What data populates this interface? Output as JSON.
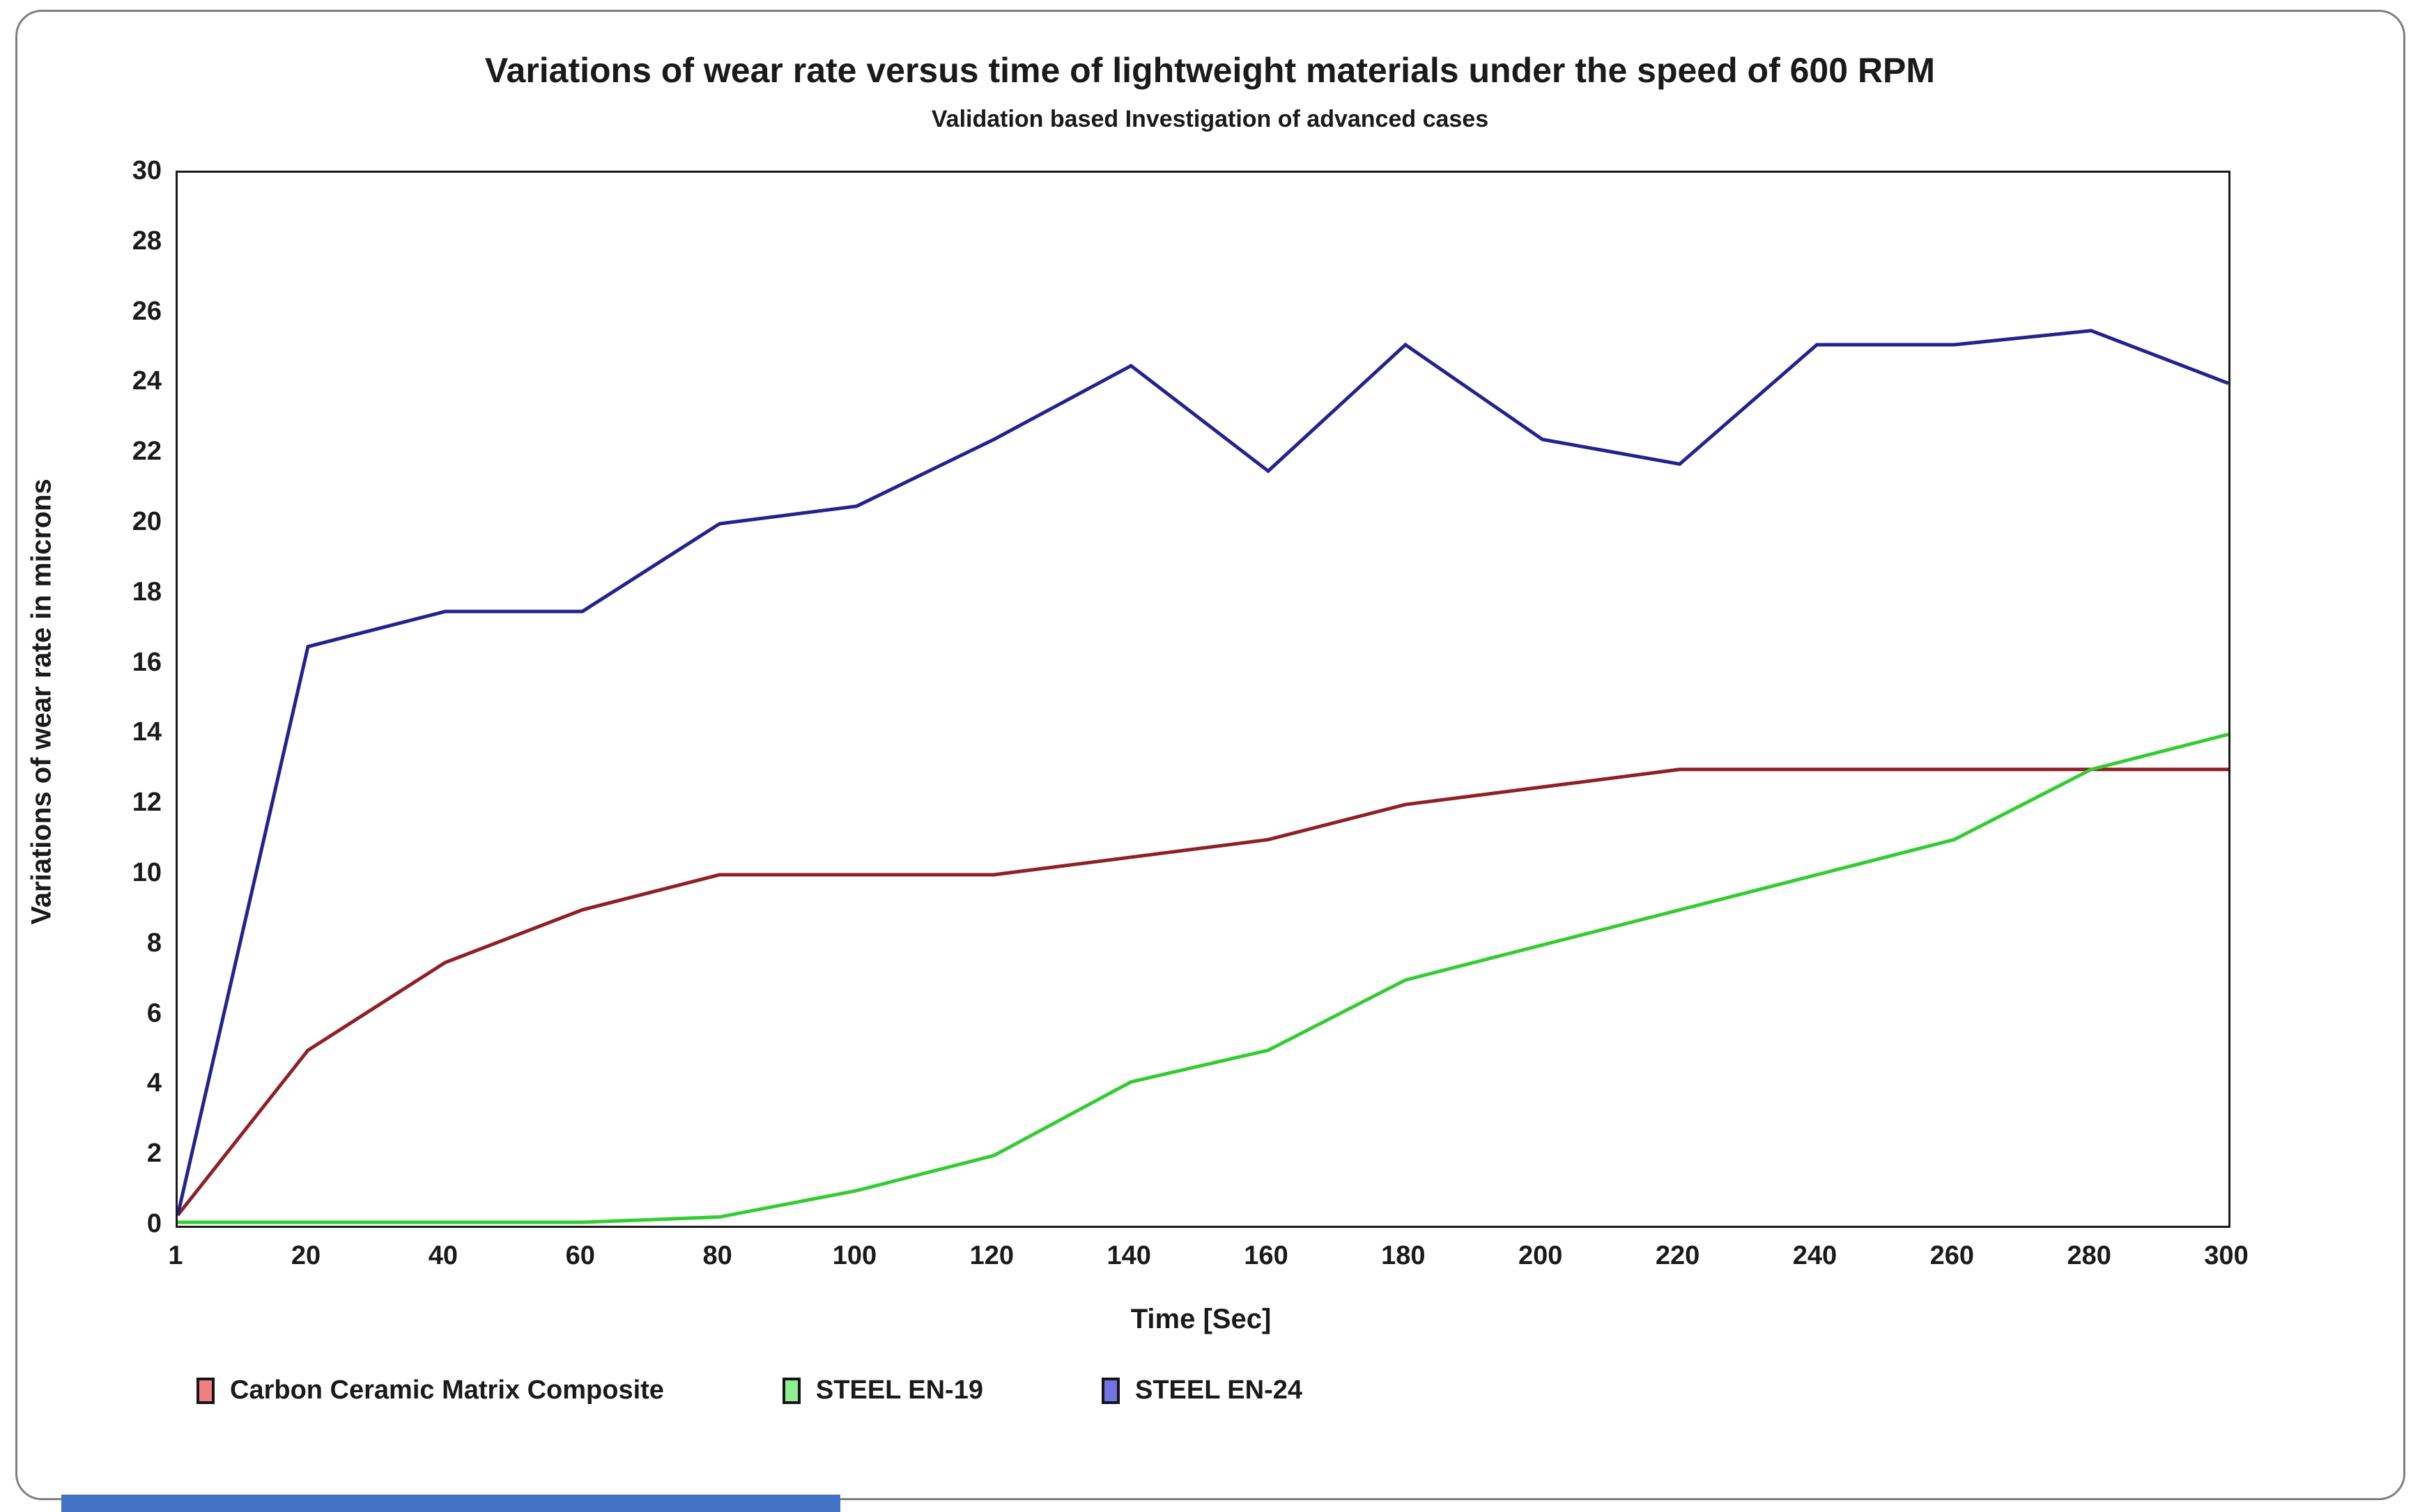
{
  "page": {
    "background": "#ffffff",
    "frame_border_color": "#7f7f7f",
    "axis_color": "#1a1a1a",
    "text_color": "#1a1a1a",
    "bottom_strip_color": "#4472C4"
  },
  "chart_data": {
    "type": "line",
    "title": "Variations of wear rate versus time of lightweight materials under the speed of 600 RPM",
    "subtitle": "Validation based Investigation of advanced cases",
    "xlabel": "Time [Sec]",
    "ylabel": "Variations of wear rate in microns",
    "xlim": [
      1,
      300
    ],
    "ylim": [
      0,
      30
    ],
    "grid": false,
    "legend_position": "bottom-left",
    "x_ticks": [
      1,
      20,
      40,
      60,
      80,
      100,
      120,
      140,
      160,
      180,
      200,
      220,
      240,
      260,
      280,
      300
    ],
    "y_ticks": [
      0,
      2,
      4,
      6,
      8,
      10,
      12,
      14,
      16,
      18,
      20,
      22,
      24,
      26,
      28,
      30
    ],
    "x": [
      1,
      20,
      40,
      60,
      80,
      100,
      120,
      140,
      160,
      180,
      200,
      220,
      240,
      260,
      280,
      300
    ],
    "series": [
      {
        "name": "Carbon Ceramic Matrix Composite",
        "line_color": "#8E2026",
        "legend_fill": "#F08080",
        "values": [
          0.3,
          5,
          7.5,
          9,
          10,
          10,
          10,
          10.5,
          11,
          12,
          12.5,
          13,
          13,
          13,
          13,
          13
        ]
      },
      {
        "name": "STEEL EN-19",
        "line_color": "#33CC33",
        "legend_fill": "#90EE90",
        "values": [
          0.1,
          0.1,
          0.1,
          0.1,
          0.25,
          1,
          2,
          4.1,
          5,
          7,
          8,
          9,
          10,
          11,
          13,
          14
        ]
      },
      {
        "name": "STEEL EN-24",
        "line_color": "#23238F",
        "legend_fill": "#7373E6",
        "values": [
          0.3,
          16.5,
          17.5,
          17.5,
          20,
          20.5,
          22.4,
          24.5,
          21.5,
          25.1,
          22.4,
          21.7,
          25.1,
          25.1,
          25.5,
          24
        ]
      }
    ]
  }
}
